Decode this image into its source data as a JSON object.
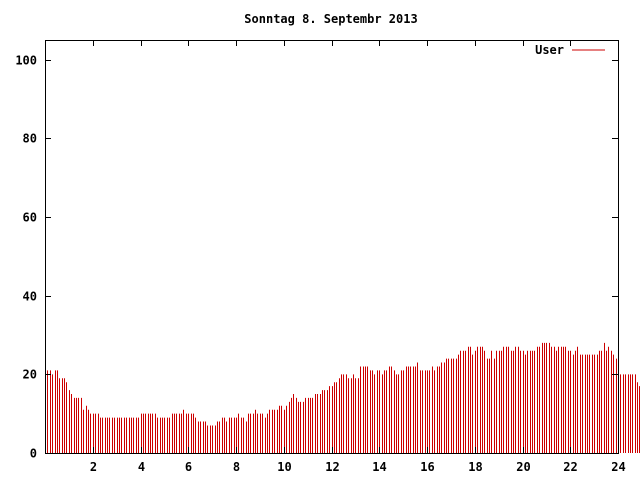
{
  "chart_data": {
    "type": "bar",
    "title": "Sonntag 8. Septembr 2013",
    "xlabel": "",
    "ylabel": "",
    "xlim": [
      0,
      24
    ],
    "ylim": [
      0,
      105
    ],
    "x_ticks": [
      2,
      4,
      6,
      8,
      10,
      12,
      14,
      16,
      18,
      20,
      22,
      24
    ],
    "x_tick_labels": [
      "2",
      "4",
      "6",
      "8",
      "10",
      "12",
      "14",
      "16",
      "18",
      "20",
      "22",
      "24"
    ],
    "y_ticks": [
      0,
      20,
      40,
      60,
      80,
      100
    ],
    "y_tick_labels": [
      "0",
      "20",
      "40",
      "60",
      "80",
      "100"
    ],
    "grid": false,
    "legend_position": "top-right",
    "series_color": "#cc0000",
    "series": [
      {
        "name": "User",
        "interval_hours": 0.1,
        "values": [
          22,
          21,
          21,
          20,
          21,
          21,
          19,
          19,
          19,
          18,
          16,
          15,
          14,
          14,
          14,
          14,
          11,
          12,
          11,
          10,
          10,
          10,
          10,
          9,
          9,
          9,
          9,
          9,
          9,
          9,
          9,
          9,
          9,
          9,
          9,
          9,
          9,
          9,
          9,
          9,
          10,
          10,
          10,
          10,
          10,
          10,
          10,
          9,
          9,
          9,
          9,
          9,
          9,
          10,
          10,
          10,
          10,
          10,
          11,
          10,
          10,
          10,
          10,
          9,
          8,
          8,
          8,
          8,
          7,
          7,
          7,
          7,
          8,
          8,
          9,
          9,
          8,
          9,
          9,
          9,
          9,
          10,
          9,
          9,
          8,
          10,
          10,
          10,
          11,
          10,
          10,
          10,
          9,
          10,
          11,
          11,
          11,
          11,
          12,
          12,
          11,
          12,
          13,
          14,
          15,
          14,
          13,
          13,
          13,
          14,
          14,
          14,
          14,
          15,
          15,
          15,
          16,
          16,
          16,
          17,
          17,
          18,
          18,
          19,
          20,
          20,
          20,
          19,
          19,
          20,
          19,
          19,
          22,
          22,
          22,
          22,
          21,
          21,
          20,
          21,
          21,
          20,
          21,
          21,
          22,
          22,
          21,
          20,
          20,
          21,
          21,
          22,
          22,
          22,
          22,
          22,
          23,
          21,
          21,
          21,
          21,
          21,
          22,
          21,
          22,
          22,
          23,
          23,
          24,
          24,
          24,
          24,
          24,
          25,
          26,
          26,
          26,
          27,
          27,
          25,
          26,
          27,
          27,
          27,
          26,
          24,
          24,
          26,
          24,
          26,
          26,
          26,
          27,
          27,
          27,
          26,
          26,
          27,
          27,
          26,
          26,
          25,
          26,
          26,
          26,
          26,
          27,
          27,
          28,
          28,
          28,
          28,
          27,
          27,
          26,
          27,
          27,
          27,
          27,
          26,
          26,
          25,
          26,
          27,
          25,
          25,
          25,
          25,
          25,
          25,
          25,
          25,
          26,
          26,
          28,
          26,
          27,
          26,
          25,
          24,
          22,
          20,
          20,
          20,
          20,
          20,
          20,
          20,
          18,
          17,
          17,
          18,
          17,
          16,
          15,
          14,
          14
        ]
      }
    ]
  }
}
